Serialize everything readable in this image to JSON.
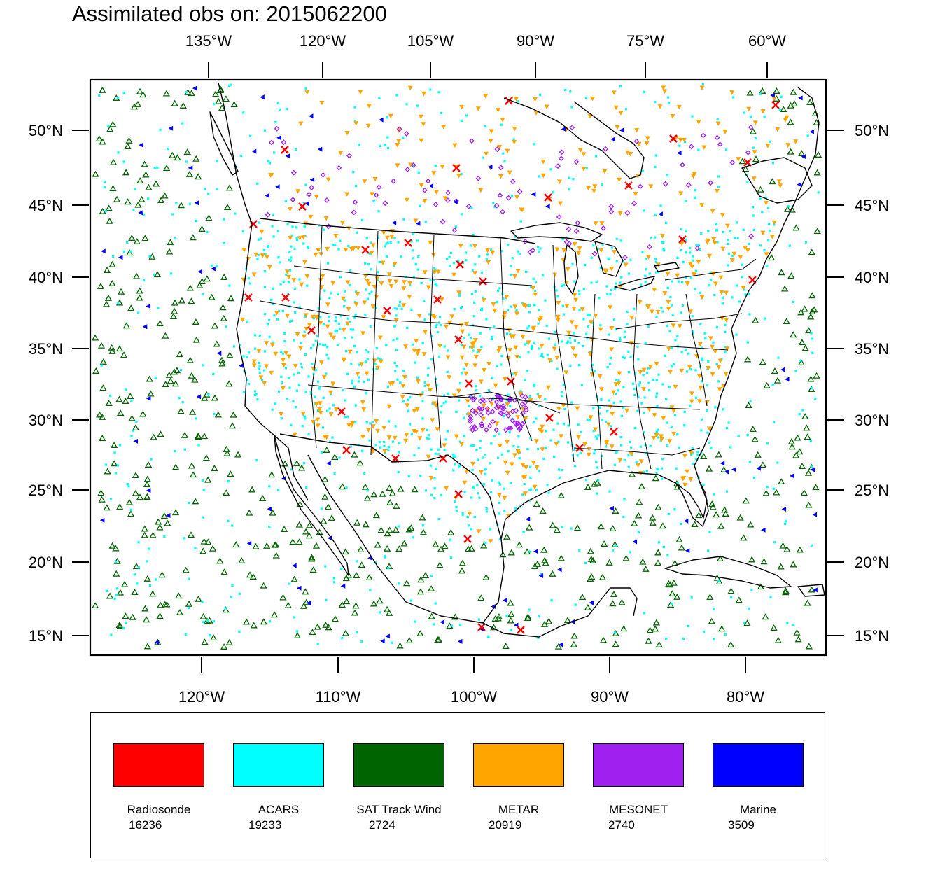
{
  "title": "Assimilated obs on: 2015062200",
  "top_ticks": [
    "135°W",
    "120°W",
    "105°W",
    "90°W",
    "75°W",
    "60°W"
  ],
  "bottom_ticks": [
    "120°W",
    "110°W",
    "100°W",
    "90°W",
    "80°W"
  ],
  "lat_ticks": [
    "50°N",
    "45°N",
    "40°N",
    "35°N",
    "30°N",
    "25°N",
    "20°N",
    "15°N"
  ],
  "colors": {
    "radiosonde": "#ff0000",
    "acars": "#00ffff",
    "sat_track_wind": "#006400",
    "metar": "#ffa500",
    "mesonet": "#a020f0",
    "marine": "#0000ff",
    "coast": "#000000"
  },
  "legend": [
    {
      "label": "Radiosonde",
      "count": "16236",
      "color": "#ff0000"
    },
    {
      "label": "ACARS",
      "count": "19233",
      "color": "#00ffff"
    },
    {
      "label": "SAT Track Wind",
      "count": "2724",
      "color": "#006400"
    },
    {
      "label": "METAR",
      "count": "20919",
      "color": "#ffa500"
    },
    {
      "label": "MESONET",
      "count": "2740",
      "color": "#a020f0"
    },
    {
      "label": "Marine",
      "count": "3509",
      "color": "#0000ff"
    }
  ]
}
